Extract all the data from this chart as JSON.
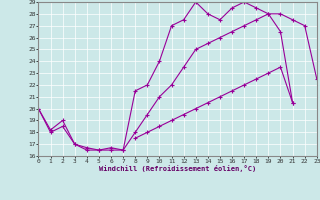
{
  "xlabel": "Windchill (Refroidissement éolien,°C)",
  "xlim": [
    0,
    23
  ],
  "ylim": [
    16,
    29
  ],
  "yticks": [
    16,
    17,
    18,
    19,
    20,
    21,
    22,
    23,
    24,
    25,
    26,
    27,
    28,
    29
  ],
  "xticks": [
    0,
    1,
    2,
    3,
    4,
    5,
    6,
    7,
    8,
    9,
    10,
    11,
    12,
    13,
    14,
    15,
    16,
    17,
    18,
    19,
    20,
    21,
    22,
    23
  ],
  "line_color": "#990099",
  "bg_color": "#cce8e8",
  "line1_x": [
    0,
    1,
    2,
    3,
    4,
    5,
    6,
    7,
    8,
    9,
    10,
    11,
    12,
    13,
    14,
    15,
    16,
    17,
    18,
    19,
    20,
    21,
    22,
    23
  ],
  "line1_y": [
    20,
    18,
    18.5,
    17,
    16.5,
    16.5,
    16.5,
    16.5,
    18,
    19.5,
    21,
    22,
    23.5,
    25,
    25.5,
    26,
    26.5,
    27,
    27.5,
    28,
    26.5,
    20.5,
    null,
    null
  ],
  "line2_x": [
    0,
    1,
    2,
    3,
    4,
    5,
    6,
    7,
    8,
    9,
    10,
    11,
    12,
    13,
    14,
    15,
    16,
    17,
    18,
    19,
    20,
    21,
    22,
    23
  ],
  "line2_y": [
    20,
    18.2,
    19,
    17,
    16.7,
    16.5,
    16.7,
    16.5,
    21.5,
    22,
    24,
    27,
    27.5,
    29,
    28,
    27.5,
    28.5,
    29,
    28.5,
    28,
    28,
    27.5,
    27,
    22.5
  ],
  "line3_x": [
    0,
    1,
    2,
    3,
    4,
    5,
    6,
    7,
    8,
    9,
    10,
    11,
    12,
    13,
    14,
    15,
    16,
    17,
    18,
    19,
    20,
    21,
    22,
    23
  ],
  "line3_y": [
    null,
    null,
    null,
    null,
    null,
    null,
    null,
    null,
    17.5,
    18,
    18.5,
    19,
    19.5,
    20,
    20.5,
    21,
    21.5,
    22,
    22.5,
    23,
    23.5,
    20.5,
    null,
    null
  ]
}
